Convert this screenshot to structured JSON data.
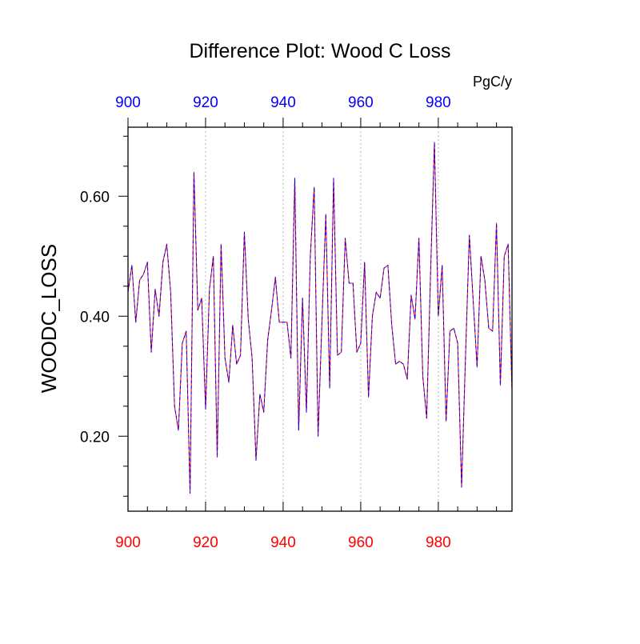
{
  "chart_data": {
    "type": "line",
    "title": "Difference Plot: Wood C Loss",
    "units": "PgC/y",
    "ylabel": "WOODC_LOSS",
    "xlabel": "",
    "xlim": [
      900,
      999
    ],
    "ylim": [
      0.075,
      0.715
    ],
    "x_ticks": [
      900,
      920,
      940,
      960,
      980
    ],
    "y_ticks": [
      0.2,
      0.4,
      0.6
    ],
    "y_tick_labels": [
      "0.20",
      "0.40",
      "0.60"
    ],
    "grid": "vertical-dotted",
    "colors": {
      "bottom_axis": "#ff0000",
      "top_axis": "#0000ff",
      "series_a": "#ff0000",
      "series_b": "#0000ff"
    },
    "x": [
      900,
      901,
      902,
      903,
      904,
      905,
      906,
      907,
      908,
      909,
      910,
      911,
      912,
      913,
      914,
      915,
      916,
      917,
      918,
      919,
      920,
      921,
      922,
      923,
      924,
      925,
      926,
      927,
      928,
      929,
      930,
      931,
      932,
      933,
      934,
      935,
      936,
      937,
      938,
      939,
      940,
      941,
      942,
      943,
      944,
      945,
      946,
      947,
      948,
      949,
      950,
      951,
      952,
      953,
      954,
      955,
      956,
      957,
      958,
      959,
      960,
      961,
      962,
      963,
      964,
      965,
      966,
      967,
      968,
      969,
      970,
      971,
      972,
      973,
      974,
      975,
      976,
      977,
      978,
      979,
      980,
      981,
      982,
      983,
      984,
      985,
      986,
      987,
      988,
      989,
      990,
      991,
      992,
      993,
      994,
      995,
      996,
      997,
      998,
      999
    ],
    "series": [
      {
        "values": [
          0.44,
          0.485,
          0.39,
          0.46,
          0.47,
          0.49,
          0.34,
          0.445,
          0.4,
          0.49,
          0.52,
          0.44,
          0.25,
          0.21,
          0.355,
          0.375,
          0.105,
          0.64,
          0.41,
          0.43,
          0.245,
          0.445,
          0.5,
          0.165,
          0.52,
          0.33,
          0.29,
          0.385,
          0.32,
          0.335,
          0.54,
          0.395,
          0.33,
          0.16,
          0.27,
          0.24,
          0.36,
          0.41,
          0.465,
          0.39,
          0.39,
          0.39,
          0.33,
          0.63,
          0.21,
          0.43,
          0.24,
          0.5,
          0.615,
          0.2,
          0.39,
          0.57,
          0.28,
          0.63,
          0.335,
          0.34,
          0.53,
          0.455,
          0.455,
          0.34,
          0.355,
          0.49,
          0.265,
          0.4,
          0.44,
          0.43,
          0.48,
          0.485,
          0.385,
          0.32,
          0.325,
          0.32,
          0.295,
          0.435,
          0.395,
          0.53,
          0.3,
          0.23,
          0.47,
          0.69,
          0.4,
          0.485,
          0.225,
          0.375,
          0.38,
          0.355,
          0.115,
          0.33,
          0.535,
          0.425,
          0.315,
          0.5,
          0.46,
          0.38,
          0.375,
          0.555,
          0.285,
          0.5,
          0.52,
          0.275
        ]
      },
      {
        "values": [
          0.44,
          0.485,
          0.39,
          0.46,
          0.47,
          0.49,
          0.34,
          0.445,
          0.4,
          0.49,
          0.52,
          0.44,
          0.25,
          0.21,
          0.355,
          0.375,
          0.105,
          0.64,
          0.41,
          0.43,
          0.245,
          0.445,
          0.5,
          0.165,
          0.52,
          0.33,
          0.29,
          0.385,
          0.32,
          0.335,
          0.54,
          0.395,
          0.33,
          0.16,
          0.27,
          0.24,
          0.36,
          0.41,
          0.465,
          0.39,
          0.39,
          0.39,
          0.33,
          0.63,
          0.21,
          0.43,
          0.24,
          0.5,
          0.615,
          0.2,
          0.39,
          0.57,
          0.28,
          0.63,
          0.335,
          0.34,
          0.53,
          0.455,
          0.455,
          0.34,
          0.355,
          0.49,
          0.265,
          0.4,
          0.44,
          0.43,
          0.48,
          0.485,
          0.385,
          0.32,
          0.325,
          0.32,
          0.295,
          0.435,
          0.395,
          0.53,
          0.3,
          0.23,
          0.47,
          0.69,
          0.4,
          0.485,
          0.225,
          0.375,
          0.38,
          0.355,
          0.115,
          0.33,
          0.535,
          0.425,
          0.315,
          0.5,
          0.46,
          0.38,
          0.375,
          0.555,
          0.285,
          0.5,
          0.52,
          0.275
        ]
      }
    ]
  }
}
